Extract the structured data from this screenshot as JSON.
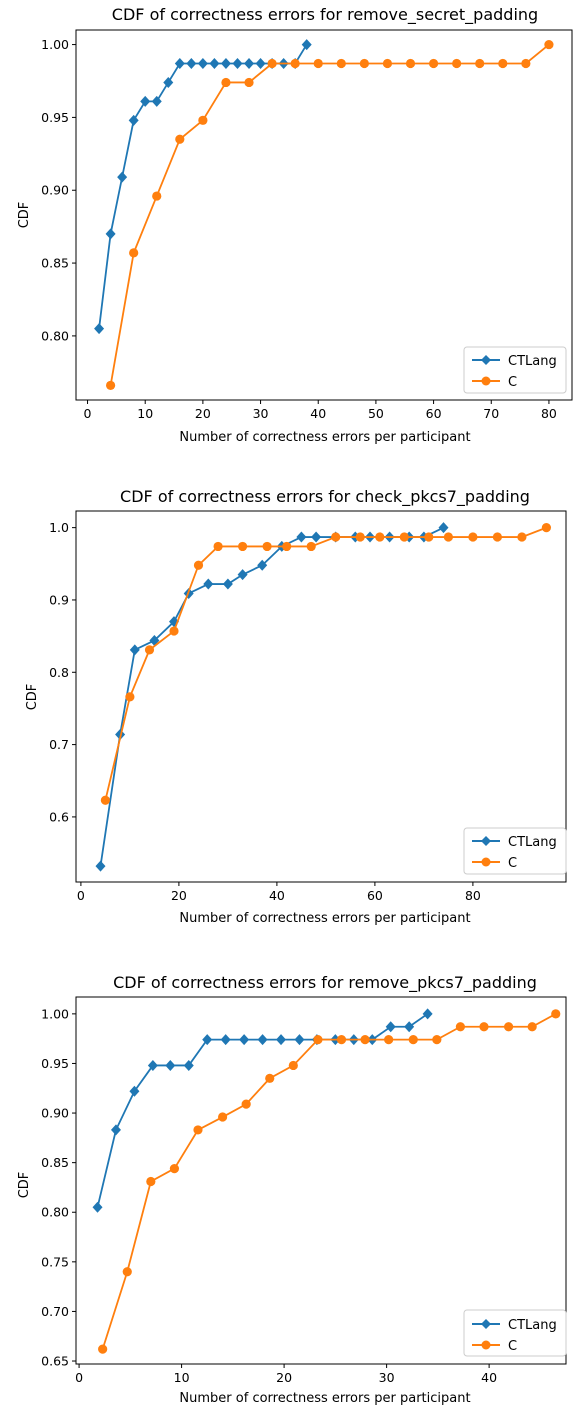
{
  "colors": {
    "CTLang": "#1f77b4",
    "C": "#ff7f0e"
  },
  "chart_data": [
    {
      "type": "line",
      "title": "CDF of correctness errors for remove_secret_padding",
      "xlabel": "Number of correctness errors per participant",
      "ylabel": "CDF",
      "xlim": [
        -2,
        84
      ],
      "ylim": [
        0.756,
        1.01
      ],
      "xticks": [
        0,
        10,
        20,
        30,
        40,
        50,
        60,
        70,
        80
      ],
      "yticks": [
        0.8,
        0.85,
        0.9,
        0.95,
        1.0
      ],
      "ytick_labels": [
        "0.80",
        "0.85",
        "0.90",
        "0.95",
        "1.00"
      ],
      "legend_position": "lower right",
      "series": [
        {
          "name": "CTLang",
          "marker": "diamond",
          "x": [
            2,
            4,
            6,
            8,
            10,
            12,
            14,
            16,
            18,
            20,
            22,
            24,
            26,
            28,
            30,
            32,
            34,
            36,
            38
          ],
          "y": [
            0.805,
            0.87,
            0.909,
            0.948,
            0.961,
            0.961,
            0.974,
            0.987,
            0.987,
            0.987,
            0.987,
            0.987,
            0.987,
            0.987,
            0.987,
            0.987,
            0.987,
            0.987,
            1.0
          ]
        },
        {
          "name": "C",
          "marker": "circle",
          "x": [
            4,
            8,
            12,
            16,
            20,
            24,
            28,
            32,
            36,
            40,
            44,
            48,
            52,
            56,
            60,
            64,
            68,
            72,
            76,
            80
          ],
          "y": [
            0.766,
            0.857,
            0.896,
            0.935,
            0.948,
            0.974,
            0.974,
            0.987,
            0.987,
            0.987,
            0.987,
            0.987,
            0.987,
            0.987,
            0.987,
            0.987,
            0.987,
            0.987,
            0.987,
            1.0
          ]
        }
      ]
    },
    {
      "type": "line",
      "title": "CDF of correctness errors for check_pkcs7_padding",
      "xlabel": "Number of correctness errors per participant",
      "ylabel": "CDF",
      "xlim": [
        -1,
        99
      ],
      "ylim": [
        0.51,
        1.023
      ],
      "xticks": [
        0,
        20,
        40,
        60,
        80
      ],
      "yticks": [
        0.6,
        0.7,
        0.8,
        0.9,
        1.0
      ],
      "ytick_labels": [
        "0.6",
        "0.7",
        "0.8",
        "0.9",
        "1.0"
      ],
      "legend_position": "lower right",
      "series": [
        {
          "name": "CTLang",
          "marker": "diamond",
          "x": [
            4,
            8,
            11,
            15,
            19,
            22,
            26,
            30,
            33,
            37,
            41,
            45,
            48,
            52,
            56,
            59,
            63,
            67,
            70,
            74
          ],
          "y": [
            0.532,
            0.714,
            0.831,
            0.844,
            0.87,
            0.909,
            0.922,
            0.922,
            0.935,
            0.948,
            0.974,
            0.987,
            0.987,
            0.987,
            0.987,
            0.987,
            0.987,
            0.987,
            0.987,
            1.0
          ]
        },
        {
          "name": "C",
          "marker": "circle",
          "x": [
            5,
            10,
            14,
            19,
            24,
            28,
            33,
            38,
            42,
            47,
            52,
            57,
            61,
            66,
            71,
            75,
            80,
            85,
            90,
            95
          ],
          "y": [
            0.623,
            0.766,
            0.831,
            0.857,
            0.948,
            0.974,
            0.974,
            0.974,
            0.974,
            0.974,
            0.987,
            0.987,
            0.987,
            0.987,
            0.987,
            0.987,
            0.987,
            0.987,
            0.987,
            1.0
          ]
        }
      ]
    },
    {
      "type": "line",
      "title": "CDF of correctness errors for remove_pkcs7_padding",
      "xlabel": "Number of correctness errors per participant",
      "ylabel": "CDF",
      "xlim": [
        -0.3,
        47.5
      ],
      "ylim": [
        0.647,
        1.017
      ],
      "xticks": [
        0,
        10,
        20,
        30,
        40
      ],
      "yticks": [
        0.65,
        0.7,
        0.75,
        0.8,
        0.85,
        0.9,
        0.95,
        1.0
      ],
      "ytick_labels": [
        "0.65",
        "0.70",
        "0.75",
        "0.80",
        "0.85",
        "0.90",
        "0.95",
        "1.00"
      ],
      "legend_position": "lower right",
      "series": [
        {
          "name": "CTLang",
          "marker": "diamond",
          "x": [
            1.8,
            3.6,
            5.4,
            7.2,
            8.9,
            10.7,
            12.5,
            14.3,
            16.1,
            17.9,
            19.7,
            21.5,
            23.2,
            25.0,
            26.8,
            28.6,
            30.4,
            32.2,
            34.0
          ],
          "y": [
            0.805,
            0.883,
            0.922,
            0.948,
            0.948,
            0.948,
            0.974,
            0.974,
            0.974,
            0.974,
            0.974,
            0.974,
            0.974,
            0.974,
            0.974,
            0.974,
            0.987,
            0.987,
            1.0
          ]
        },
        {
          "name": "C",
          "marker": "circle",
          "x": [
            2.3,
            4.7,
            7.0,
            9.3,
            11.6,
            14.0,
            16.3,
            18.6,
            20.9,
            23.3,
            25.6,
            27.9,
            30.2,
            32.6,
            34.9,
            37.2,
            39.5,
            41.9,
            44.2,
            46.5
          ],
          "y": [
            0.662,
            0.74,
            0.831,
            0.844,
            0.883,
            0.896,
            0.909,
            0.935,
            0.948,
            0.974,
            0.974,
            0.974,
            0.974,
            0.974,
            0.974,
            0.987,
            0.987,
            0.987,
            0.987,
            1.0
          ]
        }
      ]
    }
  ]
}
